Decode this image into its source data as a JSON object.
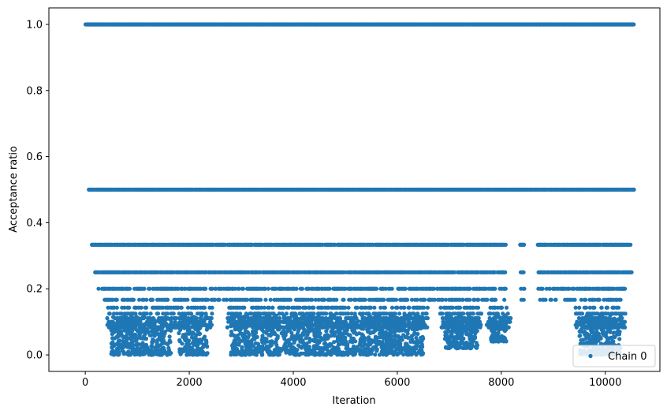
{
  "chart_data": {
    "type": "scatter",
    "xlabel": "Iteration",
    "ylabel": "Acceptance ratio",
    "xlim": [
      -700,
      11050
    ],
    "ylim": [
      -0.05,
      1.05
    ],
    "xticks": [
      0,
      2000,
      4000,
      6000,
      8000,
      10000
    ],
    "xtick_labels": [
      "0",
      "2000",
      "4000",
      "6000",
      "8000",
      "10000"
    ],
    "yticks": [
      0.0,
      0.2,
      0.4,
      0.6,
      0.8,
      1.0
    ],
    "ytick_labels": [
      "0.0",
      "0.2",
      "0.4",
      "0.6",
      "0.8",
      "1.0"
    ],
    "grid": false,
    "legend_position": "lower-right",
    "series": [
      {
        "name": "Chain 0",
        "color": "#1f77b4",
        "marker": "point",
        "n_iterations": 10550,
        "acceptance_levels": [
          1.0,
          0.5,
          0.3333,
          0.25,
          0.2,
          0.1667,
          0.1429,
          0.125,
          0.1111,
          0.1,
          0.0909,
          0.0833
        ],
        "level_iteration_ranges": [
          {
            "level": 1.0,
            "from": 0,
            "to": 10550
          },
          {
            "level": 0.5,
            "from": 60,
            "to": 10550
          },
          {
            "level": 0.3333,
            "from": 120,
            "to": 10500
          },
          {
            "level": 0.25,
            "from": 180,
            "to": 10500
          },
          {
            "level": 0.2,
            "from": 250,
            "to": 10450
          },
          {
            "level": 0.1667,
            "from": 350,
            "to": 10400
          }
        ],
        "low_ratio_clusters": [
          {
            "from": 500,
            "to": 1650,
            "min": 0.0,
            "max": 0.12
          },
          {
            "from": 1800,
            "to": 2350,
            "min": 0.0,
            "max": 0.12
          },
          {
            "from": 2800,
            "to": 6500,
            "min": 0.0,
            "max": 0.12
          },
          {
            "from": 6900,
            "to": 7550,
            "min": 0.02,
            "max": 0.12
          },
          {
            "from": 7800,
            "to": 8100,
            "min": 0.04,
            "max": 0.12
          },
          {
            "from": 9500,
            "to": 10300,
            "min": 0.0,
            "max": 0.12
          }
        ],
        "gaps": [
          {
            "from": 8100,
            "to": 8350
          },
          {
            "from": 8450,
            "to": 8700
          }
        ]
      }
    ]
  }
}
